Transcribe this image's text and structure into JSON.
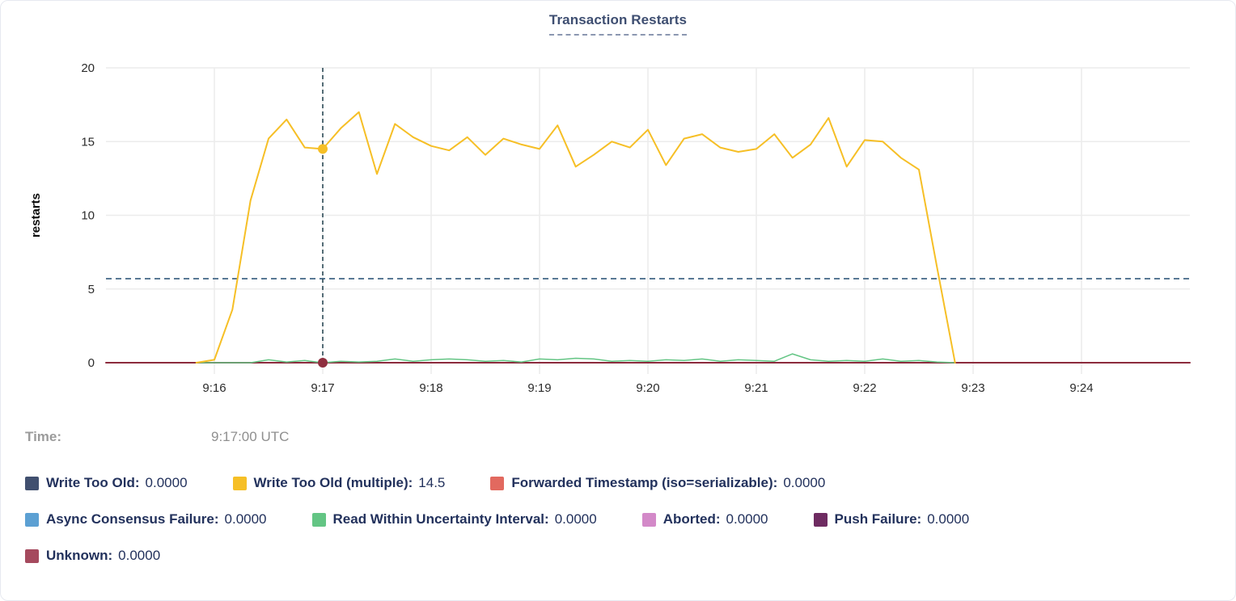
{
  "card": {
    "title": "Transaction Restarts"
  },
  "chart_data": {
    "type": "line",
    "title": "Transaction Restarts",
    "ylabel": "restarts",
    "ylim": [
      0,
      20
    ],
    "yticks": [
      0,
      5,
      10,
      15,
      20
    ],
    "xticks": [
      "9:16",
      "9:17",
      "9:18",
      "9:19",
      "9:20",
      "9:21",
      "9:22",
      "9:23",
      "9:24"
    ],
    "x_domain": [
      "9:15:00",
      "9:25:00"
    ],
    "grid": true,
    "grid_color": "#ececec",
    "threshold_line": {
      "value": 5.7,
      "color": "#587894",
      "style": "dashed"
    },
    "tracker": {
      "time": "9:17:00",
      "color": "#2c4a57",
      "dots": [
        {
          "series": "Write Too Old (multiple)",
          "value": 14.5,
          "color": "#f6bf26"
        },
        {
          "series": "Unknown",
          "value": 0,
          "color": "#8f2f3f"
        }
      ]
    },
    "series": [
      {
        "name": "Unknown",
        "color": "#8c2b3d",
        "width": 2,
        "points": [
          [
            "9:15:00",
            0
          ],
          [
            "9:25:00",
            0
          ]
        ]
      },
      {
        "name": "Read Within Uncertainty Interval",
        "color": "#63c584",
        "width": 1.5,
        "points": [
          [
            "9:15:50",
            0
          ],
          [
            "9:16:00",
            0
          ],
          [
            "9:16:10",
            0
          ],
          [
            "9:16:20",
            0
          ],
          [
            "9:16:30",
            0.2
          ],
          [
            "9:16:40",
            0.05
          ],
          [
            "9:16:50",
            0.15
          ],
          [
            "9:17:00",
            0
          ],
          [
            "9:17:10",
            0.1
          ],
          [
            "9:17:20",
            0.05
          ],
          [
            "9:17:30",
            0.1
          ],
          [
            "9:17:40",
            0.25
          ],
          [
            "9:17:50",
            0.1
          ],
          [
            "9:18:00",
            0.2
          ],
          [
            "9:18:10",
            0.25
          ],
          [
            "9:18:20",
            0.2
          ],
          [
            "9:18:30",
            0.1
          ],
          [
            "9:18:40",
            0.15
          ],
          [
            "9:18:50",
            0.05
          ],
          [
            "9:19:00",
            0.25
          ],
          [
            "9:19:10",
            0.2
          ],
          [
            "9:19:20",
            0.3
          ],
          [
            "9:19:30",
            0.25
          ],
          [
            "9:19:40",
            0.1
          ],
          [
            "9:19:50",
            0.15
          ],
          [
            "9:20:00",
            0.1
          ],
          [
            "9:20:10",
            0.2
          ],
          [
            "9:20:20",
            0.15
          ],
          [
            "9:20:30",
            0.25
          ],
          [
            "9:20:40",
            0.1
          ],
          [
            "9:20:50",
            0.2
          ],
          [
            "9:21:00",
            0.15
          ],
          [
            "9:21:10",
            0.1
          ],
          [
            "9:21:20",
            0.6
          ],
          [
            "9:21:30",
            0.2
          ],
          [
            "9:21:40",
            0.1
          ],
          [
            "9:21:50",
            0.15
          ],
          [
            "9:22:00",
            0.1
          ],
          [
            "9:22:10",
            0.25
          ],
          [
            "9:22:20",
            0.1
          ],
          [
            "9:22:30",
            0.15
          ],
          [
            "9:22:40",
            0.05
          ],
          [
            "9:22:50",
            0
          ]
        ]
      },
      {
        "name": "Write Too Old (multiple)",
        "color": "#f6bf26",
        "width": 2,
        "points": [
          [
            "9:15:50",
            0
          ],
          [
            "9:16:00",
            0.2
          ],
          [
            "9:16:10",
            3.6
          ],
          [
            "9:16:20",
            11.0
          ],
          [
            "9:16:30",
            15.2
          ],
          [
            "9:16:40",
            16.5
          ],
          [
            "9:16:50",
            14.6
          ],
          [
            "9:17:00",
            14.5
          ],
          [
            "9:17:10",
            15.9
          ],
          [
            "9:17:20",
            17.0
          ],
          [
            "9:17:30",
            12.8
          ],
          [
            "9:17:40",
            16.2
          ],
          [
            "9:17:50",
            15.3
          ],
          [
            "9:18:00",
            14.7
          ],
          [
            "9:18:10",
            14.4
          ],
          [
            "9:18:20",
            15.3
          ],
          [
            "9:18:30",
            14.1
          ],
          [
            "9:18:40",
            15.2
          ],
          [
            "9:18:50",
            14.8
          ],
          [
            "9:19:00",
            14.5
          ],
          [
            "9:19:10",
            16.1
          ],
          [
            "9:19:20",
            13.3
          ],
          [
            "9:19:30",
            14.1
          ],
          [
            "9:19:40",
            15.0
          ],
          [
            "9:19:50",
            14.6
          ],
          [
            "9:20:00",
            15.8
          ],
          [
            "9:20:10",
            13.4
          ],
          [
            "9:20:20",
            15.2
          ],
          [
            "9:20:30",
            15.5
          ],
          [
            "9:20:40",
            14.6
          ],
          [
            "9:20:50",
            14.3
          ],
          [
            "9:21:00",
            14.5
          ],
          [
            "9:21:10",
            15.5
          ],
          [
            "9:21:20",
            13.9
          ],
          [
            "9:21:30",
            14.8
          ],
          [
            "9:21:40",
            16.6
          ],
          [
            "9:21:50",
            13.3
          ],
          [
            "9:22:00",
            15.1
          ],
          [
            "9:22:10",
            15.0
          ],
          [
            "9:22:20",
            13.9
          ],
          [
            "9:22:30",
            13.1
          ],
          [
            "9:22:40",
            6.5
          ],
          [
            "9:22:50",
            0
          ]
        ]
      }
    ]
  },
  "time_row": {
    "label": "Time:",
    "value": "9:17:00 UTC"
  },
  "legend": {
    "items": [
      {
        "label": "Write Too Old:",
        "value": "0.0000",
        "color": "#41506f"
      },
      {
        "label": "Write Too Old (multiple):",
        "value": "14.5",
        "color": "#f6bf26"
      },
      {
        "label": "Forwarded Timestamp (iso=serializable):",
        "value": "0.0000",
        "color": "#e2695f"
      },
      {
        "label": "Async Consensus Failure:",
        "value": "0.0000",
        "color": "#5ca0d3"
      },
      {
        "label": "Read Within Uncertainty Interval:",
        "value": "0.0000",
        "color": "#63c584"
      },
      {
        "label": "Aborted:",
        "value": "0.0000",
        "color": "#d389c8"
      },
      {
        "label": "Push Failure:",
        "value": "0.0000",
        "color": "#6e2b61"
      },
      {
        "label": "Unknown:",
        "value": "0.0000",
        "color": "#a54a5e"
      }
    ]
  }
}
